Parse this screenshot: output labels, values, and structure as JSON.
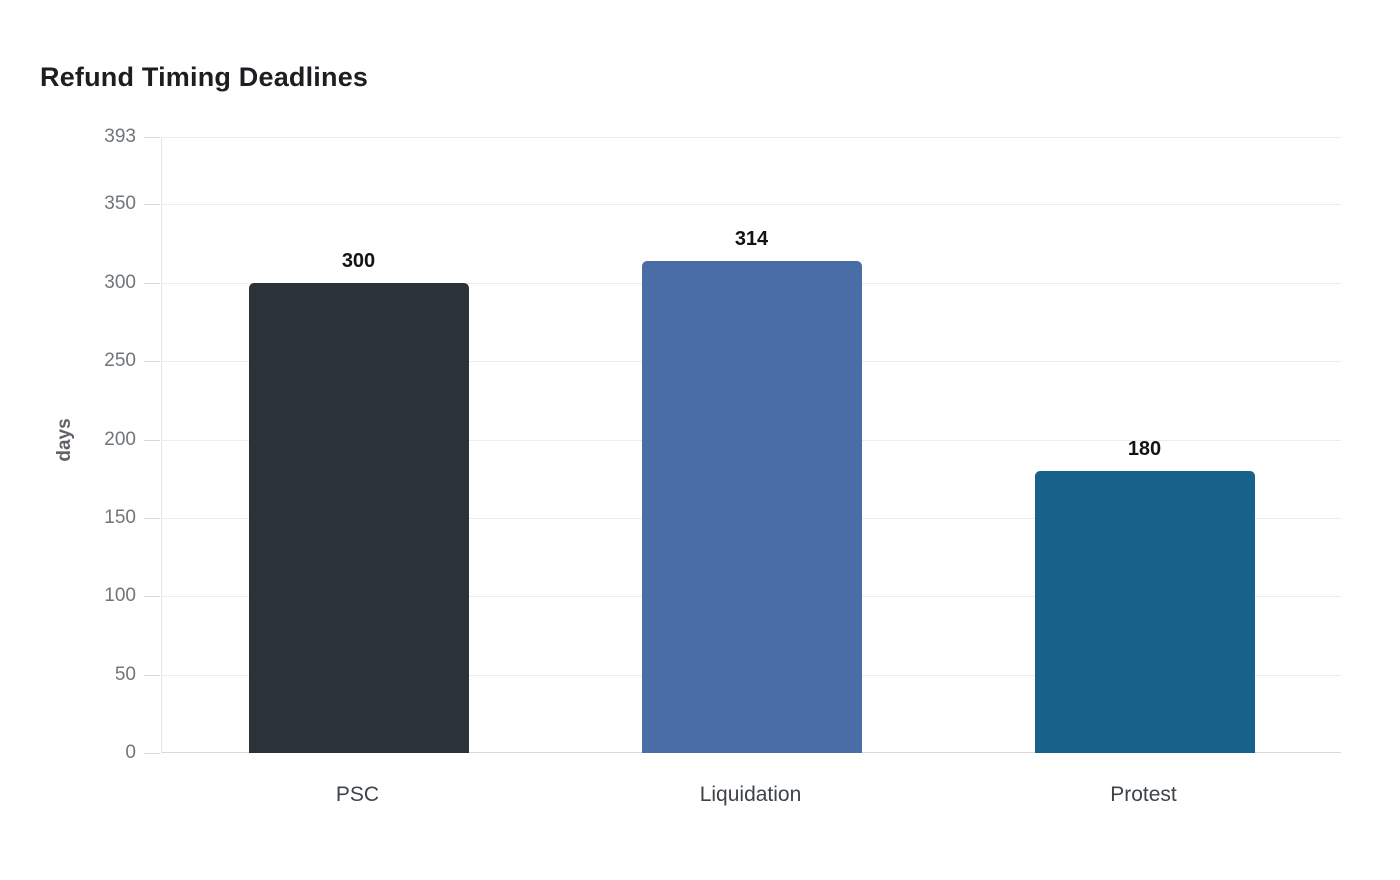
{
  "chart_data": {
    "type": "bar",
    "title": "Refund Timing Deadlines",
    "xlabel": "",
    "ylabel": "days",
    "categories": [
      "PSC",
      "Liquidation",
      "Protest"
    ],
    "values": [
      300,
      314,
      180
    ],
    "value_labels": [
      "300",
      "314",
      "180"
    ],
    "bar_colors": [
      "#2b3338",
      "#4a6da8",
      "#17618a"
    ],
    "ylim": [
      0,
      393
    ],
    "yticks": [
      0,
      50,
      100,
      150,
      200,
      250,
      300,
      350,
      393
    ],
    "grid": true,
    "legend": false,
    "background": "#ffffff"
  }
}
